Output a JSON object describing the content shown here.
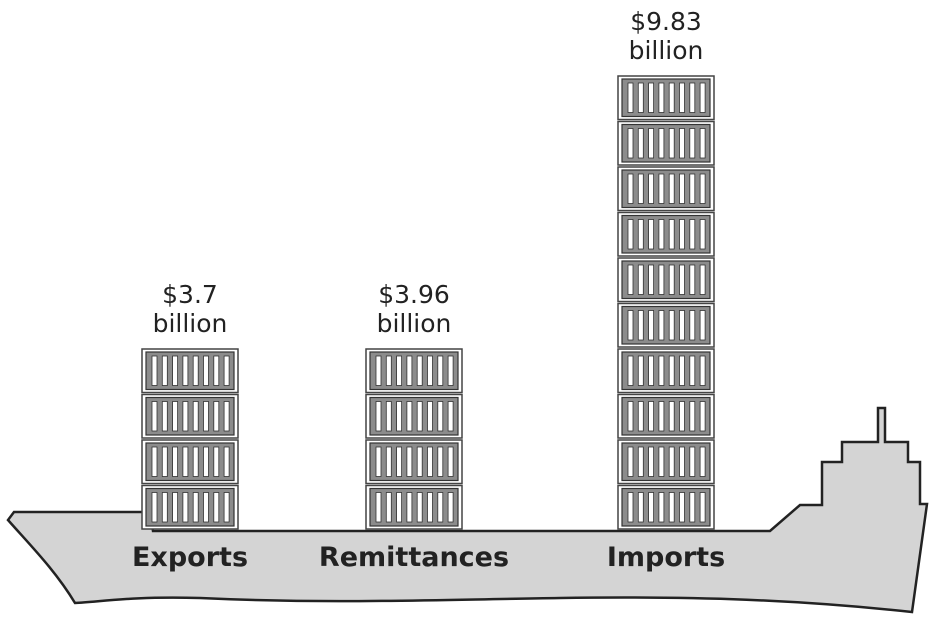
{
  "chart_data": {
    "type": "pictogram",
    "categories": [
      "Exports",
      "Remittances",
      "Imports"
    ],
    "values": [
      3.7,
      3.96,
      9.83
    ],
    "value_labels": [
      "$3.7 billion",
      "$3.96 billion",
      "$9.83 billion"
    ],
    "color": "#8c8c8c"
  }
}
